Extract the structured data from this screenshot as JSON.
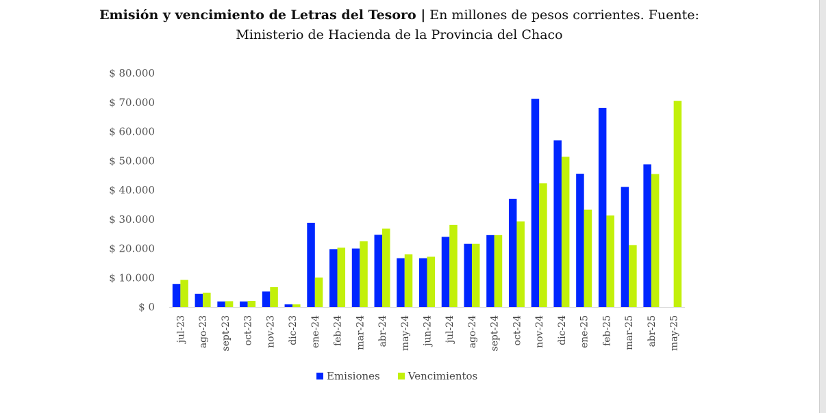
{
  "title_bold": "Emisión y vencimiento de Letras del Tesoro |",
  "title_rest_line1": " En millones de pesos corrientes. Fuente:",
  "title_line2": "Ministerio de Hacienda de la Provincia del Chaco",
  "chart_data": {
    "type": "bar",
    "title": "Emisión y vencimiento de Letras del Tesoro | En millones de pesos corrientes. Fuente: Ministerio de Hacienda de la Provincia del Chaco",
    "xlabel": "",
    "ylabel": "",
    "ylim": [
      0,
      80000
    ],
    "yticks": [
      0,
      10000,
      20000,
      30000,
      40000,
      50000,
      60000,
      70000,
      80000
    ],
    "ytick_labels": [
      "$ 0",
      "$ 10.000",
      "$ 20.000",
      "$ 30.000",
      "$ 40.000",
      "$ 50.000",
      "$ 60.000",
      "$ 70.000",
      "$ 80.000"
    ],
    "categories": [
      "jul-23",
      "ago-23",
      "sept-23",
      "oct-23",
      "nov-23",
      "dic-23",
      "ene-24",
      "feb-24",
      "mar-24",
      "abr-24",
      "may-24",
      "jun-24",
      "jul-24",
      "ago-24",
      "sept-24",
      "oct-24",
      "nov-24",
      "dic-24",
      "ene-25",
      "feb-25",
      "mar-25",
      "abr-25",
      "may-25"
    ],
    "series": [
      {
        "name": "Emisiones",
        "color": "#0026ff",
        "values": [
          7900,
          4500,
          1900,
          1900,
          5300,
          900,
          28800,
          19800,
          20000,
          24700,
          16700,
          16700,
          24000,
          21600,
          24600,
          37000,
          71200,
          57000,
          45600,
          68100,
          41100,
          48800,
          0
        ]
      },
      {
        "name": "Vencimientos",
        "color": "#c2f00a",
        "values": [
          9300,
          4900,
          2000,
          2100,
          6800,
          900,
          10100,
          20300,
          22500,
          26800,
          18000,
          17200,
          28100,
          21600,
          24600,
          29300,
          42300,
          51400,
          33300,
          31300,
          21200,
          45500,
          70500
        ]
      }
    ],
    "legend_position": "bottom",
    "grid": false
  }
}
